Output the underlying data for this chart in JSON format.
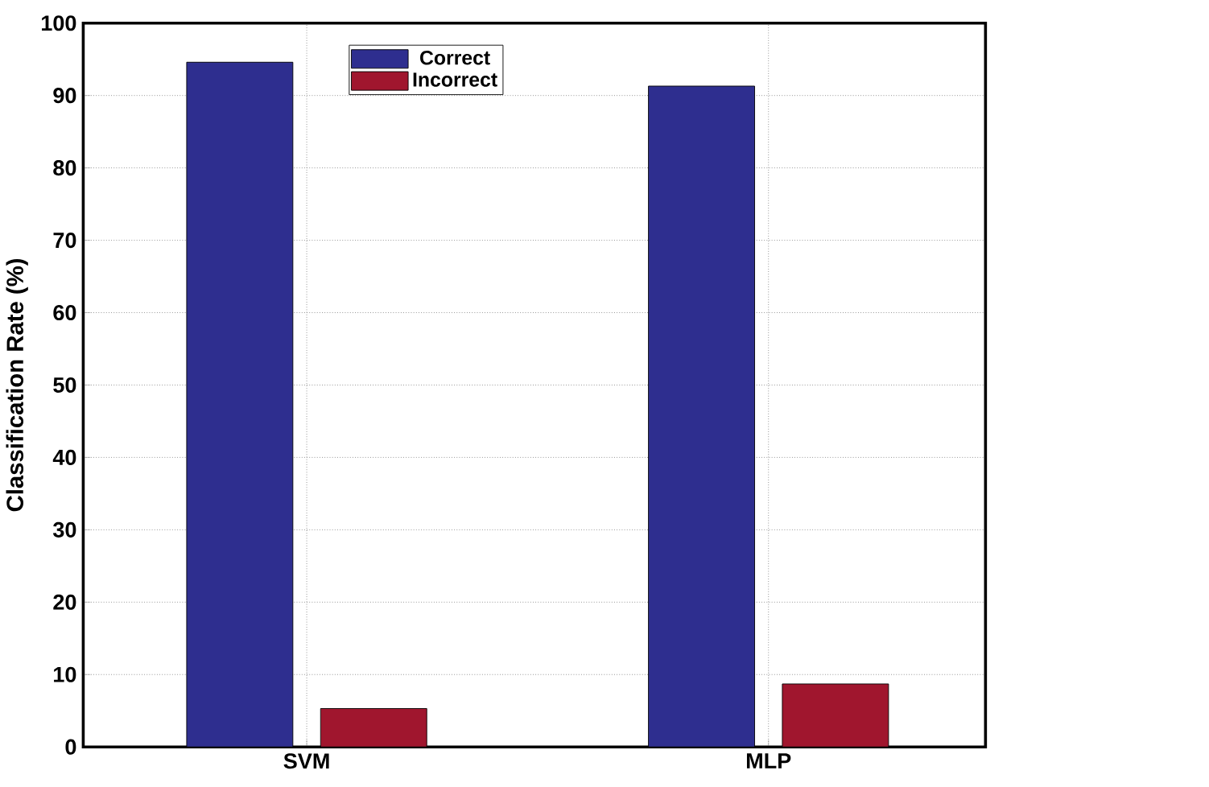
{
  "chart_data": {
    "type": "bar",
    "ylabel": "Classification Rate (%)",
    "categories": [
      "SVM",
      "MLP"
    ],
    "series": [
      {
        "name": "Correct",
        "color": "#2e2e8f",
        "values": [
          94.6,
          91.3
        ]
      },
      {
        "name": "Incorrect",
        "color": "#a0162e",
        "values": [
          5.3,
          8.7
        ]
      }
    ],
    "ylim": [
      0,
      100
    ],
    "yticks": [
      0,
      10,
      20,
      30,
      40,
      50,
      60,
      70,
      80,
      90,
      100
    ],
    "grid": true,
    "legend": "top"
  }
}
